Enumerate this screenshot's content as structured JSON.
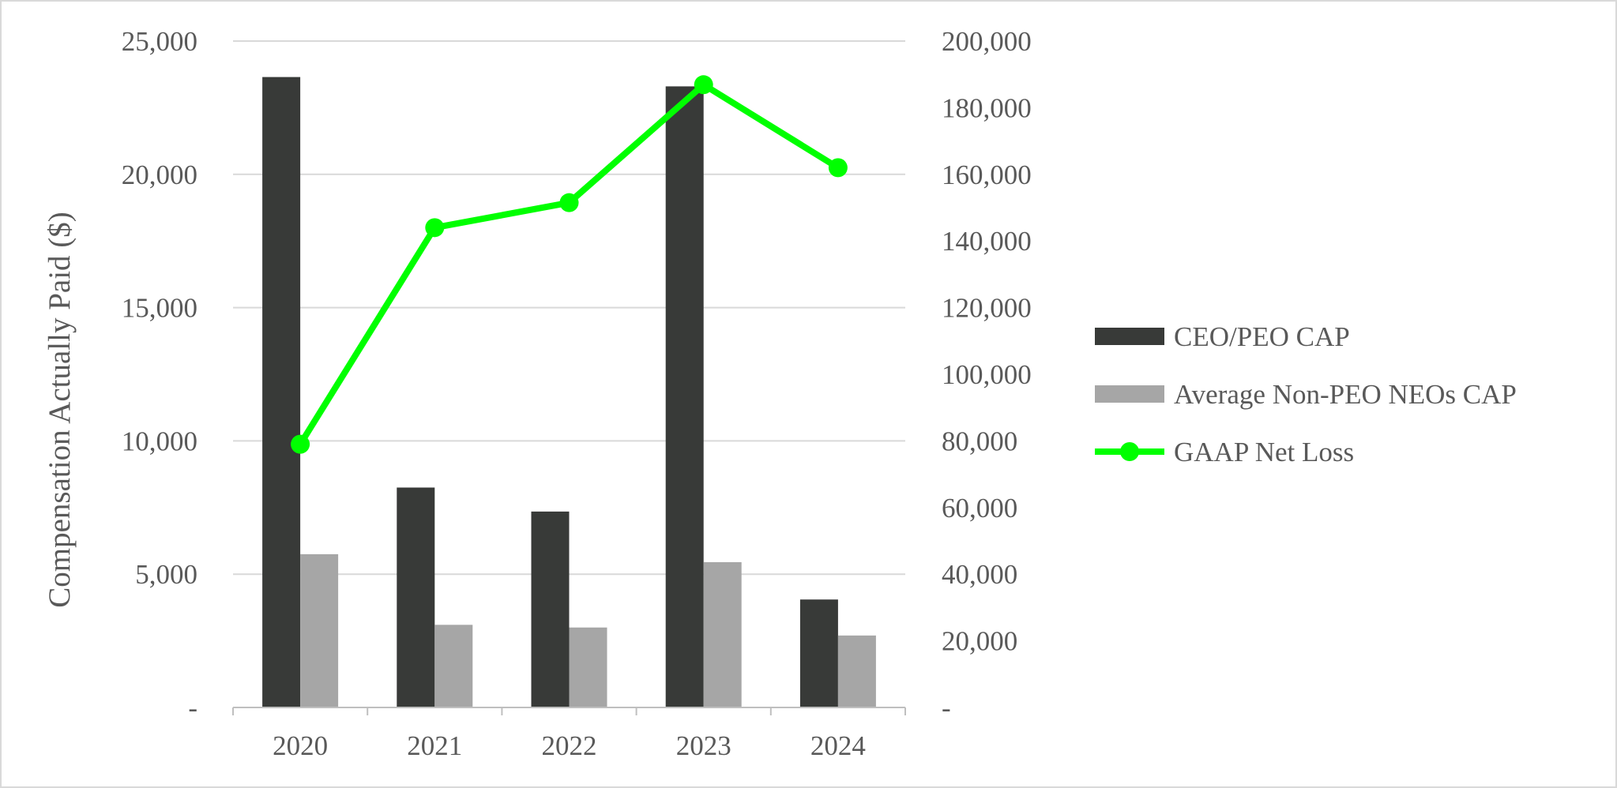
{
  "chart_data": {
    "type": "bar",
    "categories": [
      "2020",
      "2021",
      "2022",
      "2023",
      "2024"
    ],
    "ylabel": "Compensation Actually Paid ($)",
    "y_left": {
      "range": [
        0,
        25000
      ],
      "ticks": [
        "-",
        "5,000",
        "10,000",
        "15,000",
        "20,000",
        "25,000"
      ]
    },
    "y_right": {
      "range": [
        0,
        200000
      ],
      "ticks": [
        "-",
        "20,000",
        "40,000",
        "60,000",
        "80,000",
        "100,000",
        "120,000",
        "140,000",
        "160,000",
        "180,000",
        "200,000"
      ]
    },
    "series": [
      {
        "name": "CEO/PEO CAP",
        "type": "bar",
        "axis": "left",
        "color": "#383a38",
        "values": [
          23650,
          8250,
          7350,
          23300,
          4050
        ]
      },
      {
        "name": "Average Non-PEO NEOs CAP",
        "type": "bar",
        "axis": "left",
        "color": "#a6a6a6",
        "values": [
          5750,
          3100,
          3000,
          5450,
          2700
        ]
      },
      {
        "name": "GAAP Net Loss",
        "type": "line",
        "axis": "right",
        "color": "#00ff00",
        "values": [
          79000,
          144000,
          151500,
          186900,
          162000
        ]
      }
    ],
    "grid": true,
    "legend": "right"
  }
}
